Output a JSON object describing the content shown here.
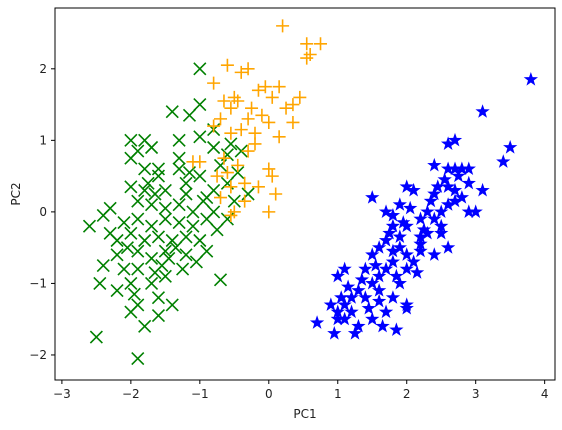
{
  "chart_data": {
    "type": "scatter",
    "title": "",
    "xlabel": "PC1",
    "ylabel": "PC2",
    "xlim": [
      -3.1,
      4.15
    ],
    "ylim": [
      -2.35,
      2.85
    ],
    "xticks": [
      -3,
      -2,
      -1,
      0,
      1,
      2,
      3,
      4
    ],
    "yticks": [
      -2,
      -1,
      0,
      1,
      2
    ],
    "xtick_labels": [
      "−3",
      "−2",
      "−1",
      "0",
      "1",
      "2",
      "3",
      "4"
    ],
    "ytick_labels": [
      "−2",
      "−1",
      "0",
      "1",
      "2"
    ],
    "grid": false,
    "legend": "none",
    "series": [
      {
        "marker": "star",
        "color": "#0000ff",
        "points": [
          [
            3.8,
            1.85
          ],
          [
            3.1,
            1.4
          ],
          [
            3.5,
            0.9
          ],
          [
            3.4,
            0.7
          ],
          [
            3.1,
            0.3
          ],
          [
            2.9,
            0.4
          ],
          [
            2.7,
            1.0
          ],
          [
            2.6,
            0.95
          ],
          [
            2.8,
            0.6
          ],
          [
            2.7,
            0.6
          ],
          [
            2.9,
            0.6
          ],
          [
            2.4,
            0.65
          ],
          [
            2.6,
            0.35
          ],
          [
            2.4,
            0.25
          ],
          [
            2.7,
            0.15
          ],
          [
            2.5,
            0.0
          ],
          [
            2.3,
            0.0
          ],
          [
            2.1,
            0.3
          ],
          [
            2.0,
            0.35
          ],
          [
            1.9,
            0.1
          ],
          [
            2.2,
            -0.1
          ],
          [
            1.8,
            -0.05
          ],
          [
            1.7,
            0.0
          ],
          [
            1.5,
            0.2
          ],
          [
            2.0,
            -0.2
          ],
          [
            2.9,
            0.0
          ],
          [
            2.5,
            -0.2
          ],
          [
            2.3,
            -0.3
          ],
          [
            2.2,
            -0.35
          ],
          [
            2.6,
            -0.5
          ],
          [
            2.4,
            -0.6
          ],
          [
            2.2,
            -0.45
          ],
          [
            1.8,
            -0.2
          ],
          [
            1.9,
            -0.35
          ],
          [
            1.7,
            -0.4
          ],
          [
            1.9,
            -0.5
          ],
          [
            1.6,
            -0.5
          ],
          [
            2.0,
            -0.6
          ],
          [
            1.8,
            -0.7
          ],
          [
            1.7,
            -0.8
          ],
          [
            1.5,
            -0.6
          ],
          [
            1.4,
            -0.8
          ],
          [
            2.0,
            -0.8
          ],
          [
            1.6,
            -0.9
          ],
          [
            1.9,
            -1.0
          ],
          [
            1.5,
            -1.0
          ],
          [
            1.3,
            -1.1
          ],
          [
            1.1,
            -0.8
          ],
          [
            1.0,
            -0.9
          ],
          [
            1.2,
            -1.2
          ],
          [
            1.1,
            -1.3
          ],
          [
            1.0,
            -1.4
          ],
          [
            0.9,
            -1.3
          ],
          [
            1.2,
            -1.4
          ],
          [
            1.4,
            -1.2
          ],
          [
            1.6,
            -1.1
          ],
          [
            1.8,
            -1.2
          ],
          [
            1.7,
            -1.4
          ],
          [
            2.0,
            -1.3
          ],
          [
            1.5,
            -1.5
          ],
          [
            1.3,
            -1.6
          ],
          [
            1.1,
            -1.5
          ],
          [
            1.0,
            -1.5
          ],
          [
            0.7,
            -1.55
          ],
          [
            0.95,
            -1.7
          ],
          [
            1.25,
            -1.7
          ],
          [
            1.85,
            -1.65
          ],
          [
            2.0,
            -1.35
          ],
          [
            1.6,
            -1.25
          ],
          [
            1.8,
            -0.55
          ],
          [
            2.1,
            -0.7
          ],
          [
            2.2,
            -0.55
          ],
          [
            2.5,
            -0.3
          ],
          [
            2.4,
            -0.1
          ],
          [
            2.6,
            0.1
          ],
          [
            2.7,
            0.3
          ],
          [
            2.8,
            0.2
          ],
          [
            3.0,
            0.0
          ],
          [
            2.6,
            0.6
          ],
          [
            2.45,
            0.35
          ],
          [
            2.05,
            0.05
          ],
          [
            1.95,
            -0.15
          ],
          [
            1.55,
            -0.75
          ],
          [
            1.35,
            -0.95
          ],
          [
            1.15,
            -1.05
          ],
          [
            2.25,
            -0.25
          ],
          [
            2.15,
            -0.85
          ],
          [
            1.45,
            -1.35
          ],
          [
            1.65,
            -1.6
          ],
          [
            1.05,
            -1.2
          ],
          [
            2.75,
            0.5
          ],
          [
            2.55,
            0.45
          ],
          [
            2.35,
            0.15
          ],
          [
            1.75,
            -0.3
          ],
          [
            1.85,
            -0.9
          ]
        ]
      },
      {
        "marker": "plus",
        "color": "#ffa500",
        "points": [
          [
            0.2,
            2.6
          ],
          [
            0.55,
            2.35
          ],
          [
            0.75,
            2.35
          ],
          [
            0.6,
            2.2
          ],
          [
            0.55,
            2.15
          ],
          [
            -0.6,
            2.05
          ],
          [
            -0.4,
            1.95
          ],
          [
            -0.8,
            1.8
          ],
          [
            -0.3,
            2.0
          ],
          [
            -0.15,
            1.7
          ],
          [
            -0.05,
            1.75
          ],
          [
            0.15,
            1.75
          ],
          [
            0.05,
            1.6
          ],
          [
            0.45,
            1.6
          ],
          [
            0.35,
            1.5
          ],
          [
            -0.5,
            1.6
          ],
          [
            -0.45,
            1.55
          ],
          [
            -0.65,
            1.55
          ],
          [
            -0.55,
            1.45
          ],
          [
            0.25,
            1.45
          ],
          [
            -0.25,
            1.45
          ],
          [
            -0.1,
            1.35
          ],
          [
            0.35,
            1.25
          ],
          [
            0.0,
            1.25
          ],
          [
            -0.3,
            1.3
          ],
          [
            -0.7,
            1.3
          ],
          [
            -0.8,
            1.2
          ],
          [
            -0.4,
            1.15
          ],
          [
            -0.55,
            1.1
          ],
          [
            -0.2,
            1.1
          ],
          [
            0.15,
            1.05
          ],
          [
            -0.3,
            0.85
          ],
          [
            -0.45,
            0.65
          ],
          [
            -1.1,
            0.7
          ],
          [
            -0.6,
            0.55
          ],
          [
            -0.75,
            0.5
          ],
          [
            -0.55,
            0.35
          ],
          [
            -0.35,
            0.4
          ],
          [
            0.0,
            0.6
          ],
          [
            -0.7,
            0.2
          ],
          [
            -0.5,
            0.0
          ],
          [
            -0.55,
            -0.05
          ],
          [
            0.0,
            0.0
          ],
          [
            -0.15,
            0.35
          ],
          [
            0.1,
            0.25
          ],
          [
            -0.35,
            0.15
          ],
          [
            0.05,
            0.5
          ],
          [
            -0.2,
            0.95
          ],
          [
            -0.65,
            0.75
          ],
          [
            -1.0,
            0.7
          ]
        ]
      },
      {
        "marker": "x",
        "color": "#008000",
        "points": [
          [
            -1.0,
            2.0
          ],
          [
            -1.0,
            1.5
          ],
          [
            -0.8,
            1.15
          ],
          [
            -1.4,
            1.4
          ],
          [
            -1.15,
            1.35
          ],
          [
            -1.8,
            1.0
          ],
          [
            -2.0,
            1.0
          ],
          [
            -1.9,
            0.85
          ],
          [
            -2.0,
            0.75
          ],
          [
            -1.7,
            0.9
          ],
          [
            -1.3,
            1.0
          ],
          [
            -1.0,
            1.05
          ],
          [
            -0.8,
            0.9
          ],
          [
            -0.6,
            0.8
          ],
          [
            -0.4,
            0.85
          ],
          [
            -0.7,
            0.65
          ],
          [
            -1.3,
            0.75
          ],
          [
            -1.6,
            0.6
          ],
          [
            -1.8,
            0.6
          ],
          [
            -1.6,
            0.5
          ],
          [
            -1.3,
            0.6
          ],
          [
            -1.2,
            0.4
          ],
          [
            -1.0,
            0.5
          ],
          [
            -0.8,
            0.3
          ],
          [
            -0.6,
            0.4
          ],
          [
            -0.3,
            0.25
          ],
          [
            -0.5,
            0.15
          ],
          [
            -0.9,
            0.2
          ],
          [
            -1.2,
            0.25
          ],
          [
            -1.5,
            0.3
          ],
          [
            -1.8,
            0.3
          ],
          [
            -2.0,
            0.35
          ],
          [
            -1.9,
            0.15
          ],
          [
            -1.7,
            0.1
          ],
          [
            -1.5,
            0.05
          ],
          [
            -1.3,
            0.1
          ],
          [
            -1.1,
            0.0
          ],
          [
            -0.8,
            0.0
          ],
          [
            -0.6,
            -0.1
          ],
          [
            -0.9,
            -0.1
          ],
          [
            -1.1,
            -0.2
          ],
          [
            -1.3,
            -0.15
          ],
          [
            -1.5,
            -0.1
          ],
          [
            -1.7,
            -0.2
          ],
          [
            -1.9,
            -0.1
          ],
          [
            -2.1,
            -0.15
          ],
          [
            -2.4,
            -0.05
          ],
          [
            -2.6,
            -0.2
          ],
          [
            -2.3,
            -0.3
          ],
          [
            -2.0,
            -0.3
          ],
          [
            -1.8,
            -0.4
          ],
          [
            -1.6,
            -0.35
          ],
          [
            -1.4,
            -0.4
          ],
          [
            -1.2,
            -0.35
          ],
          [
            -1.0,
            -0.4
          ],
          [
            -0.9,
            -0.55
          ],
          [
            -1.2,
            -0.6
          ],
          [
            -1.5,
            -0.55
          ],
          [
            -1.7,
            -0.65
          ],
          [
            -1.9,
            -0.55
          ],
          [
            -2.2,
            -0.6
          ],
          [
            -2.4,
            -0.75
          ],
          [
            -2.1,
            -0.8
          ],
          [
            -1.9,
            -0.8
          ],
          [
            -1.65,
            -0.85
          ],
          [
            -1.5,
            -0.9
          ],
          [
            -1.7,
            -1.0
          ],
          [
            -2.0,
            -1.0
          ],
          [
            -2.2,
            -1.1
          ],
          [
            -1.95,
            -1.15
          ],
          [
            -1.6,
            -1.2
          ],
          [
            -1.4,
            -1.3
          ],
          [
            -1.6,
            -1.45
          ],
          [
            -2.0,
            -1.4
          ],
          [
            -1.9,
            -1.3
          ],
          [
            -0.7,
            -0.95
          ],
          [
            -2.45,
            -1.0
          ],
          [
            -2.5,
            -1.75
          ],
          [
            -1.9,
            -2.05
          ],
          [
            -1.8,
            -1.6
          ],
          [
            -2.2,
            -0.4
          ],
          [
            -1.45,
            -0.65
          ],
          [
            -1.25,
            -0.8
          ],
          [
            -1.05,
            -0.7
          ],
          [
            -0.75,
            -0.25
          ],
          [
            -1.55,
            -0.75
          ],
          [
            -2.05,
            -0.5
          ],
          [
            -1.35,
            -0.5
          ],
          [
            -0.95,
            0.15
          ],
          [
            -1.65,
            0.25
          ],
          [
            -2.3,
            0.05
          ],
          [
            -1.75,
            0.4
          ],
          [
            -1.15,
            0.55
          ],
          [
            -0.55,
            0.95
          ],
          [
            -0.45,
            0.55
          ]
        ]
      }
    ]
  }
}
